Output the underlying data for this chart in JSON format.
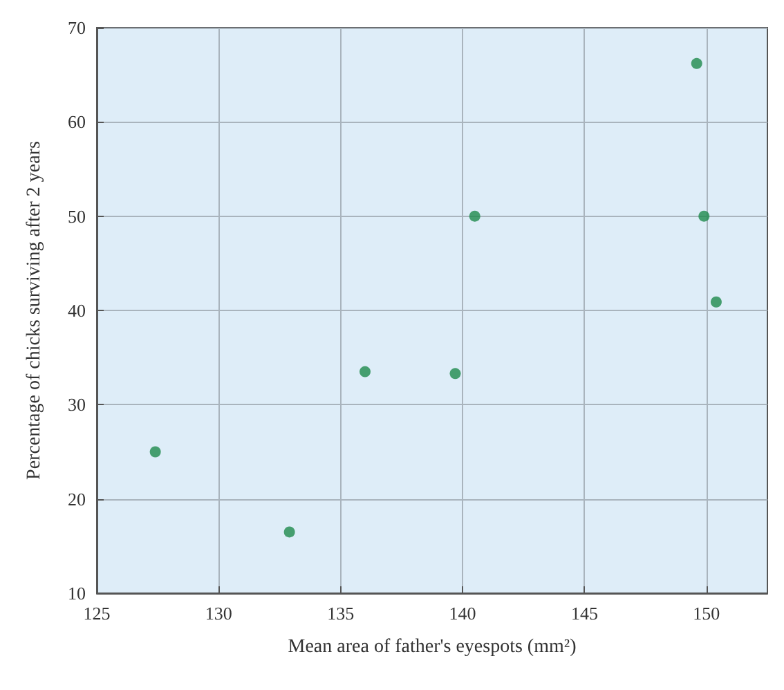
{
  "chart_data": {
    "type": "scatter",
    "xlabel": "Mean area of father's eyespots (mm²)",
    "ylabel": "Percentage of chicks surviving after 2 years",
    "x": [
      127.4,
      132.9,
      136.0,
      139.7,
      140.5,
      149.6,
      149.9,
      150.4
    ],
    "series": [
      {
        "color": "#1e8a4c",
        "values": [
          25,
          16.5,
          33.5,
          33.3,
          50,
          66.2,
          50,
          40.9
        ]
      }
    ],
    "xlim": [
      125,
      152.5
    ],
    "xticks": [
      125,
      130,
      135,
      140,
      145,
      150
    ],
    "ylim": [
      10,
      70
    ],
    "yticks": [
      10,
      20,
      30,
      40,
      50,
      60,
      70
    ],
    "grid": true,
    "marker": "circle"
  }
}
